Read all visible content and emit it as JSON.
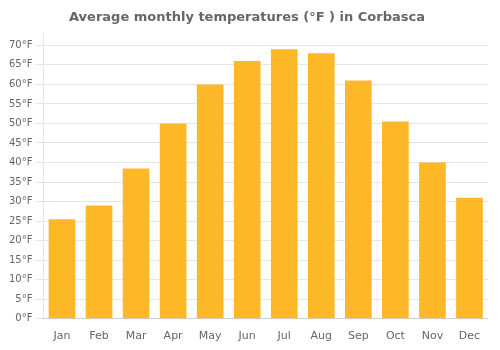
{
  "chart_data": {
    "type": "bar",
    "title": "Average monthly temperatures (°F ) in Corbasca",
    "categories": [
      "Jan",
      "Feb",
      "Mar",
      "Apr",
      "May",
      "Jun",
      "Jul",
      "Aug",
      "Sep",
      "Oct",
      "Nov",
      "Dec"
    ],
    "values": [
      25.5,
      29.0,
      38.5,
      50.0,
      60.0,
      66.0,
      69.0,
      68.0,
      61.0,
      50.5,
      40.0,
      31.0
    ],
    "color": "#FDB827",
    "ylim": [
      0,
      73
    ],
    "yticks": [
      {
        "value": 0,
        "label": "0°F"
      },
      {
        "value": 5,
        "label": "5°F"
      },
      {
        "value": 10,
        "label": "10°F"
      },
      {
        "value": 15,
        "label": "15°F"
      },
      {
        "value": 20,
        "label": "20°F"
      },
      {
        "value": 25,
        "label": "25°F"
      },
      {
        "value": 30,
        "label": "30°F"
      },
      {
        "value": 35,
        "label": "35°F"
      },
      {
        "value": 40,
        "label": "40°F"
      },
      {
        "value": 45,
        "label": "45°F"
      },
      {
        "value": 50,
        "label": "50°F"
      },
      {
        "value": 55,
        "label": "55°F"
      },
      {
        "value": 60,
        "label": "60°F"
      },
      {
        "value": 65,
        "label": "65°F"
      },
      {
        "value": 70,
        "label": "70°F"
      }
    ],
    "grid": true
  }
}
